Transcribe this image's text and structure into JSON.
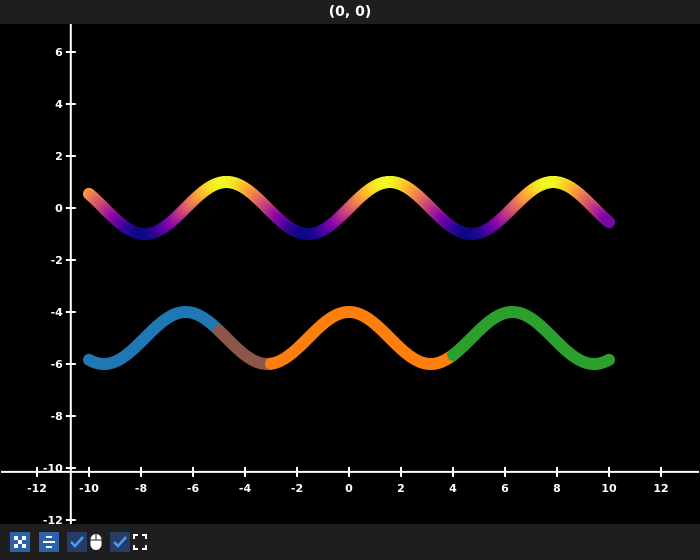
{
  "window": {
    "title": "(0, 0)"
  },
  "toolbar": {
    "items": [
      {
        "icon": "fit-all-icon",
        "type": "button"
      },
      {
        "icon": "align-center-icon",
        "type": "button"
      },
      {
        "icon": "checkmark-icon",
        "type": "checkbox",
        "checked": true,
        "label_icon": "mouse-icon"
      },
      {
        "icon": "checkmark-icon",
        "type": "checkbox",
        "checked": true,
        "label_icon": "fullscreen-icon"
      }
    ]
  },
  "chart_data": {
    "type": "line",
    "xlim": [
      -13.4,
      13.4
    ],
    "ylim": [
      -12.2,
      7
    ],
    "x_ticks": [
      "-12",
      "-10",
      "-8",
      "-6",
      "-4",
      "-2",
      "0",
      "2",
      "4",
      "6",
      "8",
      "10",
      "12"
    ],
    "y_ticks": [
      "-12",
      "-10",
      "-8",
      "-6",
      "-4",
      "-2",
      "0",
      "2",
      "4",
      "6"
    ],
    "axis_color": "#ffffff",
    "grid": false,
    "series": [
      {
        "function": "sin(x)",
        "x_range": [
          -10,
          10
        ],
        "colormap": "plasma",
        "color_by": "y",
        "color_range": [
          -1,
          1
        ]
      },
      {
        "function": "cos(x) - 5",
        "x_range": [
          -10,
          10
        ],
        "segments": [
          {
            "x_range": [
              -10,
              -5
            ],
            "color": "#1f77b4"
          },
          {
            "x_range": [
              -5,
              -3
            ],
            "color": "#8c564b"
          },
          {
            "x_range": [
              -3,
              4
            ],
            "color": "#ff7f0e"
          },
          {
            "x_range": [
              4,
              10
            ],
            "color": "#2ca02c"
          }
        ]
      }
    ]
  }
}
